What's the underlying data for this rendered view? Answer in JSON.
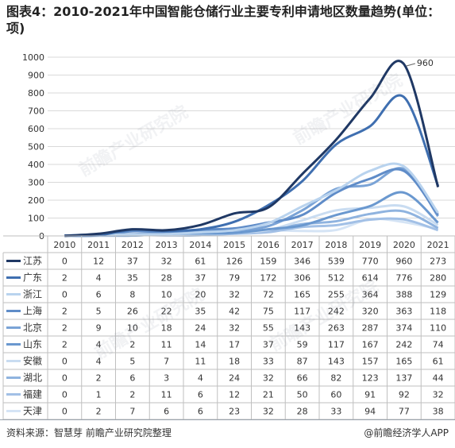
{
  "title": "图表4：2010-2021年中国智能仓储行业主要专利申请地区数量趋势(单位：项)",
  "footer": {
    "source": "资料来源：智慧芽 前瞻产业研究院整理",
    "brand": "@前瞻经济学人APP"
  },
  "watermark": "前瞻产业研究院",
  "chart_data": {
    "type": "line",
    "categories": [
      "2010",
      "2011",
      "2012",
      "2013",
      "2014",
      "2015",
      "2016",
      "2017",
      "2018",
      "2019",
      "2020",
      "2021"
    ],
    "ylim": [
      0,
      1000
    ],
    "yticks": [
      0,
      100,
      200,
      300,
      400,
      500,
      600,
      700,
      800,
      900,
      1000
    ],
    "annotation": {
      "series": "江苏",
      "x": "2020",
      "text": "960"
    },
    "series": [
      {
        "name": "江苏",
        "color": "#1f3864",
        "values": [
          0,
          12,
          37,
          32,
          61,
          126,
          159,
          346,
          539,
          770,
          960,
          273
        ]
      },
      {
        "name": "广东",
        "color": "#3f6fb0",
        "values": [
          2,
          4,
          35,
          28,
          37,
          79,
          172,
          306,
          512,
          614,
          776,
          280
        ]
      },
      {
        "name": "浙江",
        "color": "#b9d3ee",
        "values": [
          0,
          6,
          8,
          10,
          20,
          32,
          72,
          165,
          255,
          364,
          388,
          129
        ]
      },
      {
        "name": "上海",
        "color": "#5f8cc8",
        "values": [
          2,
          5,
          26,
          22,
          35,
          42,
          75,
          117,
          242,
          320,
          363,
          118
        ]
      },
      {
        "name": "北京",
        "color": "#7aa3d6",
        "values": [
          2,
          9,
          10,
          18,
          24,
          32,
          55,
          143,
          263,
          287,
          374,
          110
        ]
      },
      {
        "name": "山东",
        "color": "#6a98cf",
        "values": [
          2,
          4,
          2,
          11,
          14,
          17,
          37,
          59,
          117,
          167,
          242,
          74
        ]
      },
      {
        "name": "安徽",
        "color": "#c9dcf1",
        "values": [
          0,
          4,
          5,
          7,
          11,
          18,
          33,
          87,
          143,
          157,
          165,
          61
        ]
      },
      {
        "name": "湖北",
        "color": "#8fb3df",
        "values": [
          0,
          2,
          6,
          3,
          4,
          24,
          32,
          66,
          82,
          123,
          137,
          44
        ]
      },
      {
        "name": "福建",
        "color": "#a2c0e6",
        "values": [
          0,
          1,
          2,
          11,
          6,
          12,
          21,
          50,
          60,
          91,
          92,
          32
        ]
      },
      {
        "name": "天津",
        "color": "#d5e4f5",
        "values": [
          0,
          2,
          7,
          6,
          6,
          23,
          32,
          28,
          33,
          94,
          77,
          38
        ]
      }
    ]
  }
}
